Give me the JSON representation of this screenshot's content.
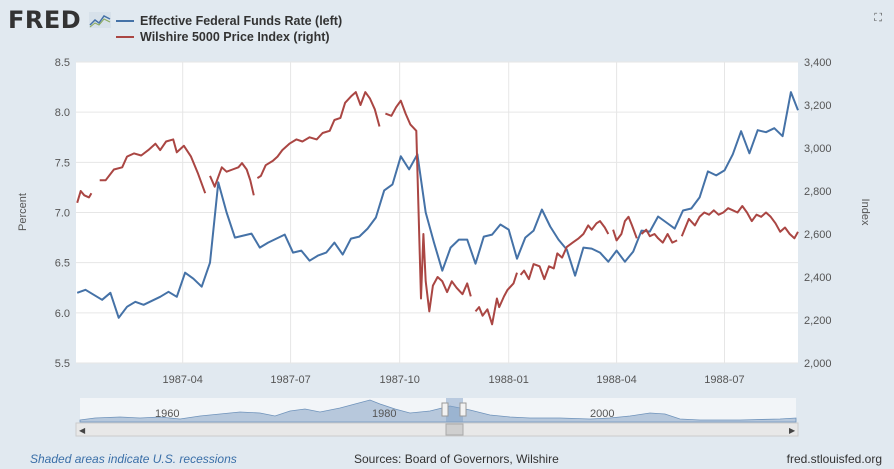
{
  "header": {
    "logo_text": "FRED",
    "expand_icon": "expand-icon"
  },
  "legend": [
    {
      "label": "Effective Federal Funds Rate (left)",
      "color": "#4572a7"
    },
    {
      "label": "Wilshire 5000 Price Index (right)",
      "color": "#aa4643"
    }
  ],
  "footer": {
    "recession_note": "Shaded areas indicate U.S. recessions",
    "sources": "Sources: Board of Governors, Wilshire",
    "site": "fred.stlouisfed.org"
  },
  "navigator": {
    "year_labels": [
      "1960",
      "1980",
      "2000"
    ]
  },
  "chart_data": {
    "type": "line",
    "ylabel_left": "Percent",
    "ylabel_right": "Index",
    "ylim_left": [
      5.5,
      8.5
    ],
    "ylim_right": [
      2000,
      3400
    ],
    "yticks_left": [
      "5.5",
      "6.0",
      "6.5",
      "7.0",
      "7.5",
      "8.0",
      "8.5"
    ],
    "yticks_right": [
      "2,000",
      "2,200",
      "2,400",
      "2,600",
      "2,800",
      "3,000",
      "3,200",
      "3,400"
    ],
    "xlim": [
      "1987-01-01",
      "1988-09-01"
    ],
    "xticks": [
      {
        "label": "1987-04",
        "date": "1987-04-01"
      },
      {
        "label": "1987-07",
        "date": "1987-07-01"
      },
      {
        "label": "1987-10",
        "date": "1987-10-01"
      },
      {
        "label": "1988-01",
        "date": "1988-01-01"
      },
      {
        "label": "1988-04",
        "date": "1988-04-01"
      },
      {
        "label": "1988-07",
        "date": "1988-07-01"
      }
    ],
    "grid": true,
    "series": [
      {
        "name": "Effective Federal Funds Rate (left)",
        "axis": "left",
        "color": "#4572a7",
        "points": [
          [
            "1987-01-02",
            6.2
          ],
          [
            "1987-01-09",
            6.23
          ],
          [
            "1987-01-16",
            6.18
          ],
          [
            "1987-01-23",
            6.13
          ],
          [
            "1987-01-30",
            6.2
          ],
          [
            "1987-02-06",
            5.95
          ],
          [
            "1987-02-13",
            6.06
          ],
          [
            "1987-02-20",
            6.11
          ],
          [
            "1987-02-27",
            6.08
          ],
          [
            "1987-03-06",
            6.12
          ],
          [
            "1987-03-13",
            6.16
          ],
          [
            "1987-03-20",
            6.21
          ],
          [
            "1987-03-27",
            6.16
          ],
          [
            "1987-04-03",
            6.4
          ],
          [
            "1987-04-10",
            6.34
          ],
          [
            "1987-04-17",
            6.26
          ],
          [
            "1987-04-24",
            6.5
          ],
          [
            "1987-05-01",
            7.3
          ],
          [
            "1987-05-08",
            7.0
          ],
          [
            "1987-05-15",
            6.75
          ],
          [
            "1987-05-22",
            6.77
          ],
          [
            "1987-05-29",
            6.79
          ],
          [
            "1987-06-05",
            6.65
          ],
          [
            "1987-06-12",
            6.7
          ],
          [
            "1987-06-19",
            6.74
          ],
          [
            "1987-06-26",
            6.78
          ],
          [
            "1987-07-03",
            6.6
          ],
          [
            "1987-07-10",
            6.62
          ],
          [
            "1987-07-17",
            6.52
          ],
          [
            "1987-07-24",
            6.57
          ],
          [
            "1987-07-31",
            6.6
          ],
          [
            "1987-08-07",
            6.7
          ],
          [
            "1987-08-14",
            6.58
          ],
          [
            "1987-08-21",
            6.74
          ],
          [
            "1987-08-28",
            6.76
          ],
          [
            "1987-09-04",
            6.84
          ],
          [
            "1987-09-11",
            6.95
          ],
          [
            "1987-09-18",
            7.22
          ],
          [
            "1987-09-25",
            7.28
          ],
          [
            "1987-10-02",
            7.56
          ],
          [
            "1987-10-09",
            7.43
          ],
          [
            "1987-10-16",
            7.58
          ],
          [
            "1987-10-23",
            7.0
          ],
          [
            "1987-10-30",
            6.7
          ],
          [
            "1987-11-06",
            6.42
          ],
          [
            "1987-11-13",
            6.65
          ],
          [
            "1987-11-20",
            6.73
          ],
          [
            "1987-11-27",
            6.73
          ],
          [
            "1987-12-04",
            6.49
          ],
          [
            "1987-12-11",
            6.76
          ],
          [
            "1987-12-18",
            6.78
          ],
          [
            "1987-12-25",
            6.88
          ],
          [
            "1988-01-01",
            6.83
          ],
          [
            "1988-01-08",
            6.54
          ],
          [
            "1988-01-15",
            6.75
          ],
          [
            "1988-01-22",
            6.82
          ],
          [
            "1988-01-29",
            7.03
          ],
          [
            "1988-02-05",
            6.86
          ],
          [
            "1988-02-12",
            6.73
          ],
          [
            "1988-02-19",
            6.63
          ],
          [
            "1988-02-26",
            6.37
          ],
          [
            "1988-03-04",
            6.65
          ],
          [
            "1988-03-11",
            6.64
          ],
          [
            "1988-03-18",
            6.6
          ],
          [
            "1988-03-25",
            6.51
          ],
          [
            "1988-04-01",
            6.62
          ],
          [
            "1988-04-08",
            6.51
          ],
          [
            "1988-04-15",
            6.61
          ],
          [
            "1988-04-22",
            6.82
          ],
          [
            "1988-04-29",
            6.81
          ],
          [
            "1988-05-06",
            6.96
          ],
          [
            "1988-05-13",
            6.9
          ],
          [
            "1988-05-20",
            6.84
          ],
          [
            "1988-05-27",
            7.02
          ],
          [
            "1988-06-03",
            7.04
          ],
          [
            "1988-06-10",
            7.15
          ],
          [
            "1988-06-17",
            7.41
          ],
          [
            "1988-06-24",
            7.37
          ],
          [
            "1988-07-01",
            7.42
          ],
          [
            "1988-07-08",
            7.58
          ],
          [
            "1988-07-15",
            7.81
          ],
          [
            "1988-07-22",
            7.59
          ],
          [
            "1988-07-29",
            7.82
          ],
          [
            "1988-08-05",
            7.8
          ],
          [
            "1988-08-12",
            7.84
          ],
          [
            "1988-08-19",
            7.76
          ],
          [
            "1988-08-26",
            8.2
          ],
          [
            "1988-09-01",
            8.02
          ]
        ]
      },
      {
        "name": "Wilshire 5000 Price Index (right)",
        "axis": "right",
        "color": "#aa4643",
        "segments": [
          [
            [
              "1987-01-02",
              2745
            ],
            [
              "1987-01-05",
              2800
            ],
            [
              "1987-01-08",
              2780
            ],
            [
              "1987-01-12",
              2770
            ],
            [
              "1987-01-14",
              2790
            ]
          ],
          [
            [
              "1987-01-21",
              2850
            ],
            [
              "1987-01-26",
              2850
            ],
            [
              "1987-02-02",
              2900
            ],
            [
              "1987-02-09",
              2910
            ],
            [
              "1987-02-13",
              2960
            ],
            [
              "1987-02-19",
              2975
            ],
            [
              "1987-02-25",
              2965
            ],
            [
              "1987-03-03",
              2990
            ],
            [
              "1987-03-09",
              3020
            ],
            [
              "1987-03-13",
              2990
            ],
            [
              "1987-03-18",
              3030
            ],
            [
              "1987-03-24",
              3040
            ],
            [
              "1987-03-27",
              2980
            ],
            [
              "1987-04-02",
              3010
            ],
            [
              "1987-04-08",
              2960
            ],
            [
              "1987-04-14",
              2880
            ],
            [
              "1987-04-20",
              2790
            ]
          ],
          [
            [
              "1987-04-24",
              2870
            ],
            [
              "1987-04-28",
              2820
            ],
            [
              "1987-05-04",
              2910
            ],
            [
              "1987-05-08",
              2890
            ],
            [
              "1987-05-13",
              2900
            ],
            [
              "1987-05-18",
              2910
            ],
            [
              "1987-05-21",
              2930
            ],
            [
              "1987-05-25",
              2900
            ],
            [
              "1987-05-28",
              2850
            ],
            [
              "1987-05-31",
              2780
            ]
          ],
          [
            [
              "1987-06-03",
              2860
            ],
            [
              "1987-06-06",
              2870
            ],
            [
              "1987-06-10",
              2920
            ],
            [
              "1987-06-16",
              2940
            ],
            [
              "1987-06-20",
              2960
            ],
            [
              "1987-06-24",
              2990
            ],
            [
              "1987-06-30",
              3020
            ],
            [
              "1987-07-06",
              3040
            ],
            [
              "1987-07-11",
              3030
            ],
            [
              "1987-07-17",
              3050
            ],
            [
              "1987-07-23",
              3040
            ],
            [
              "1987-07-28",
              3070
            ],
            [
              "1987-08-03",
              3080
            ],
            [
              "1987-08-07",
              3130
            ],
            [
              "1987-08-12",
              3140
            ],
            [
              "1987-08-16",
              3210
            ],
            [
              "1987-08-21",
              3240
            ],
            [
              "1987-08-25",
              3260
            ],
            [
              "1987-08-29",
              3200
            ],
            [
              "1987-09-02",
              3260
            ],
            [
              "1987-09-06",
              3230
            ],
            [
              "1987-09-10",
              3180
            ],
            [
              "1987-09-14",
              3100
            ]
          ],
          [
            [
              "1987-09-19",
              3160
            ],
            [
              "1987-09-24",
              3150
            ],
            [
              "1987-09-28",
              3190
            ],
            [
              "1987-10-02",
              3220
            ],
            [
              "1987-10-06",
              3160
            ],
            [
              "1987-10-10",
              3110
            ],
            [
              "1987-10-15",
              3080
            ],
            [
              "1987-10-19",
              2300
            ],
            [
              "1987-10-21",
              2600
            ],
            [
              "1987-10-23",
              2380
            ],
            [
              "1987-10-26",
              2240
            ],
            [
              "1987-10-29",
              2360
            ],
            [
              "1987-11-02",
              2400
            ],
            [
              "1987-11-06",
              2380
            ],
            [
              "1987-11-10",
              2330
            ],
            [
              "1987-11-14",
              2380
            ],
            [
              "1987-11-18",
              2350
            ],
            [
              "1987-11-23",
              2320
            ],
            [
              "1987-11-27",
              2370
            ],
            [
              "1987-11-30",
              2310
            ]
          ],
          [
            [
              "1987-12-04",
              2240
            ],
            [
              "1987-12-07",
              2260
            ],
            [
              "1987-12-10",
              2220
            ],
            [
              "1987-12-14",
              2250
            ],
            [
              "1987-12-18",
              2180
            ],
            [
              "1987-12-22",
              2300
            ],
            [
              "1987-12-24",
              2260
            ],
            [
              "1987-12-28",
              2310
            ],
            [
              "1987-12-31",
              2340
            ],
            [
              "1988-01-05",
              2370
            ],
            [
              "1988-01-08",
              2420
            ]
          ],
          [
            [
              "1988-01-11",
              2410
            ],
            [
              "1988-01-14",
              2430
            ],
            [
              "1988-01-18",
              2390
            ],
            [
              "1988-01-22",
              2460
            ],
            [
              "1988-01-27",
              2450
            ],
            [
              "1988-01-31",
              2390
            ],
            [
              "1988-02-04",
              2450
            ],
            [
              "1988-02-08",
              2440
            ],
            [
              "1988-02-11",
              2510
            ],
            [
              "1988-02-15",
              2490
            ],
            [
              "1988-02-19",
              2540
            ],
            [
              "1988-02-24",
              2560
            ],
            [
              "1988-02-29",
              2580
            ],
            [
              "1988-03-04",
              2600
            ],
            [
              "1988-03-08",
              2640
            ],
            [
              "1988-03-11",
              2620
            ],
            [
              "1988-03-15",
              2650
            ],
            [
              "1988-03-18",
              2660
            ],
            [
              "1988-03-22",
              2630
            ],
            [
              "1988-03-25",
              2600
            ]
          ],
          [
            [
              "1988-03-29",
              2620
            ],
            [
              "1988-04-01",
              2570
            ],
            [
              "1988-04-05",
              2600
            ],
            [
              "1988-04-08",
              2660
            ],
            [
              "1988-04-11",
              2680
            ],
            [
              "1988-04-14",
              2640
            ],
            [
              "1988-04-18",
              2580
            ]
          ],
          [
            [
              "1988-04-22",
              2600
            ],
            [
              "1988-04-26",
              2620
            ],
            [
              "1988-04-29",
              2590
            ],
            [
              "1988-05-03",
              2600
            ],
            [
              "1988-05-06",
              2580
            ],
            [
              "1988-05-10",
              2560
            ],
            [
              "1988-05-14",
              2600
            ],
            [
              "1988-05-18",
              2560
            ],
            [
              "1988-05-22",
              2570
            ]
          ],
          [
            [
              "1988-05-26",
              2590
            ],
            [
              "1988-06-01",
              2670
            ],
            [
              "1988-06-06",
              2640
            ],
            [
              "1988-06-10",
              2680
            ],
            [
              "1988-06-14",
              2700
            ],
            [
              "1988-06-18",
              2690
            ],
            [
              "1988-06-22",
              2710
            ],
            [
              "1988-06-26",
              2690
            ],
            [
              "1988-06-30",
              2700
            ],
            [
              "1988-07-04",
              2720
            ],
            [
              "1988-07-08",
              2710
            ],
            [
              "1988-07-12",
              2700
            ],
            [
              "1988-07-16",
              2730
            ],
            [
              "1988-07-20",
              2700
            ],
            [
              "1988-07-24",
              2660
            ],
            [
              "1988-07-28",
              2690
            ],
            [
              "1988-08-01",
              2680
            ],
            [
              "1988-08-05",
              2700
            ],
            [
              "1988-08-09",
              2680
            ],
            [
              "1988-08-13",
              2650
            ],
            [
              "1988-08-17",
              2610
            ],
            [
              "1988-08-21",
              2630
            ],
            [
              "1988-08-25",
              2600
            ],
            [
              "1988-08-29",
              2580
            ],
            [
              "1988-09-01",
              2610
            ]
          ]
        ]
      }
    ]
  }
}
